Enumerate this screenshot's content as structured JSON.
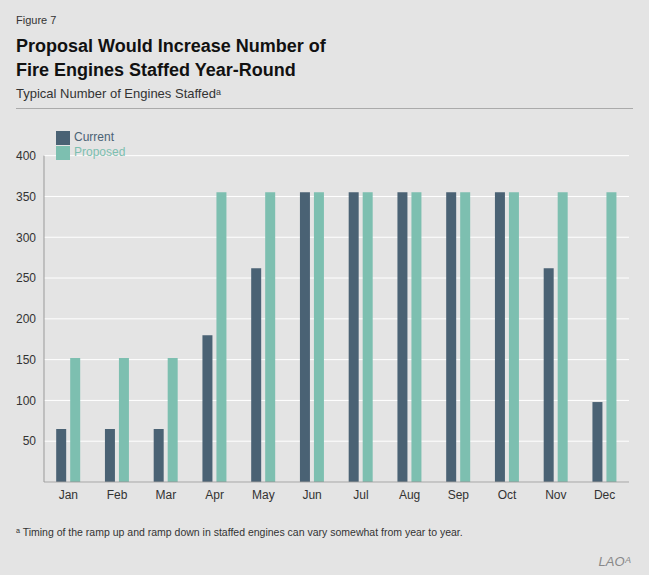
{
  "chart_data": {
    "type": "bar",
    "title": "Proposal Would Increase Number of\nFire Engines Staffed Year-Round",
    "subtitle": "Typical Number of Engines Staffedᵃ",
    "annotations": [
      "Figure 7",
      "ᵃ Timing of the ramp up and ramp down in staffed engines can vary somewhat from year to year.",
      "LAOᴬ"
    ],
    "categories": [
      "Jan",
      "Feb",
      "Mar",
      "Apr",
      "May",
      "Jun",
      "Jul",
      "Aug",
      "Sep",
      "Oct",
      "Nov",
      "Dec"
    ],
    "series": [
      {
        "name": "Current",
        "color": "#4a6274",
        "values": [
          65,
          65,
          65,
          180,
          262,
          355,
          355,
          355,
          355,
          355,
          262,
          98
        ]
      },
      {
        "name": "Proposed",
        "color": "#7dbfb0",
        "values": [
          152,
          152,
          152,
          355,
          355,
          355,
          355,
          355,
          355,
          355,
          355,
          355
        ]
      }
    ],
    "ylim": [
      0,
      400
    ],
    "yticks": [
      50,
      100,
      150,
      200,
      250,
      300,
      350,
      400
    ],
    "grid": true,
    "legend": "upper left"
  }
}
